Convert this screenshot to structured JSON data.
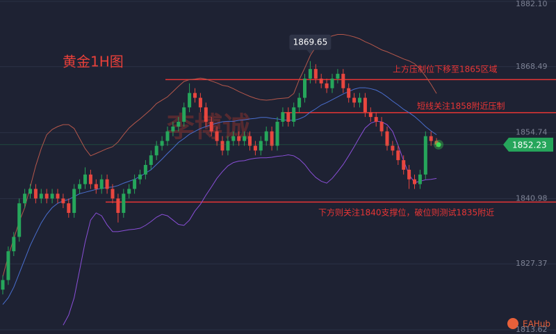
{
  "chart_data": {
    "type": "candlestick",
    "title": "黄金1H图",
    "watermark": "李博诚",
    "brand": "EAHub",
    "ylim": [
      1812.75,
      1882.39
    ],
    "yticks": [
      {
        "value": 1882.1,
        "label": "1882.10"
      },
      1868.49,
      1854.74,
      1840.98,
      1827.37,
      1813.62
    ],
    "grid": true,
    "up_color": "#26a65b",
    "down_color": "#e8463f",
    "open": [
      1822,
      1824,
      1830,
      1833,
      1840,
      1842,
      1843,
      1841,
      1842,
      1841,
      1842,
      1841,
      1840,
      1838,
      1843,
      1844,
      1846,
      1844,
      1843,
      1845,
      1843,
      1841,
      1838,
      1842,
      1843,
      1845,
      1846,
      1848,
      1850,
      1852,
      1853,
      1855,
      1856,
      1857,
      1860,
      1863,
      1862,
      1860,
      1857,
      1855,
      1853,
      1851,
      1853,
      1854,
      1853,
      1854,
      1852,
      1851,
      1853,
      1855,
      1852,
      1857,
      1859,
      1857,
      1860,
      1862,
      1866,
      1868,
      1866,
      1865,
      1864,
      1866,
      1867,
      1864,
      1862,
      1861,
      1862,
      1859,
      1858,
      1857,
      1855,
      1852,
      1851,
      1849,
      1847,
      1845,
      1844,
      1846,
      1854,
      1853
    ],
    "high": [
      1825,
      1831,
      1834,
      1841,
      1843,
      1844,
      1844,
      1843,
      1843,
      1843,
      1843,
      1842,
      1841,
      1844,
      1845,
      1847.5,
      1847,
      1845,
      1846,
      1846,
      1844,
      1842,
      1843,
      1844,
      1846,
      1847,
      1849,
      1851,
      1853,
      1854,
      1856,
      1857,
      1858,
      1861,
      1865,
      1864,
      1863,
      1861,
      1858,
      1856,
      1854,
      1854,
      1855,
      1855,
      1855,
      1855,
      1853,
      1854,
      1856,
      1856,
      1858,
      1860,
      1860,
      1861,
      1863,
      1867,
      1869.65,
      1869,
      1867,
      1866,
      1867,
      1868,
      1868,
      1865,
      1863,
      1863,
      1863,
      1860,
      1859,
      1858,
      1856,
      1853,
      1852,
      1850,
      1848,
      1846,
      1847,
      1855,
      1855,
      1853.6
    ],
    "low": [
      1821,
      1823,
      1829,
      1832,
      1839,
      1841,
      1840,
      1840,
      1840,
      1840,
      1840,
      1839,
      1837,
      1837,
      1842,
      1843,
      1843,
      1842,
      1842,
      1842,
      1840,
      1836,
      1837,
      1841,
      1842,
      1844,
      1845,
      1847,
      1849,
      1851,
      1852,
      1854,
      1855,
      1856,
      1859,
      1861,
      1859,
      1856,
      1854,
      1852,
      1850,
      1850,
      1852,
      1852,
      1852,
      1851,
      1850,
      1850,
      1852,
      1851,
      1851,
      1856,
      1856,
      1856,
      1859,
      1861,
      1865,
      1865,
      1864,
      1863,
      1863,
      1865,
      1863,
      1861,
      1860,
      1860,
      1858,
      1857,
      1856,
      1854,
      1851,
      1850,
      1848,
      1846,
      1843,
      1843,
      1843,
      1845,
      1852,
      1851.8
    ],
    "close": [
      1824,
      1830,
      1833,
      1840,
      1842,
      1843,
      1841,
      1842,
      1841,
      1842,
      1841,
      1840,
      1838,
      1843,
      1844,
      1846,
      1844,
      1843,
      1845,
      1843,
      1841,
      1838,
      1842,
      1843,
      1845,
      1846,
      1848,
      1850,
      1852,
      1853,
      1855,
      1856,
      1857,
      1860,
      1863,
      1862,
      1860,
      1857,
      1855,
      1853,
      1851,
      1853,
      1854,
      1853,
      1854,
      1852,
      1851,
      1853,
      1855,
      1852,
      1857,
      1859,
      1857,
      1860,
      1862,
      1866,
      1868,
      1866,
      1865,
      1864,
      1866,
      1867,
      1864,
      1862,
      1861,
      1862,
      1859,
      1858,
      1857,
      1855,
      1852,
      1851,
      1849,
      1847,
      1845,
      1844,
      1846,
      1854,
      1853,
      1852.23
    ],
    "series": [
      {
        "color": "#b5574b",
        "values": [
          1824.7,
          1829,
          1832.6,
          1836.2,
          1839.1,
          1843.4,
          1847.8,
          1851.4,
          1854.3,
          1855.4,
          1856,
          1856.4,
          1856.4,
          1855.6,
          1853.5,
          1851.4,
          1849.9,
          1850.4,
          1850.9,
          1851.4,
          1851.8,
          1852.8,
          1854.3,
          1855.7,
          1856.7,
          1857.6,
          1858.6,
          1859.6,
          1860.8,
          1861.5,
          1862.2,
          1863.3,
          1864.4,
          1865.4,
          1865.8,
          1865.9,
          1866.1,
          1865.9,
          1865.5,
          1865.1,
          1864.6,
          1864.4,
          1863.9,
          1863.3,
          1862.8,
          1862.3,
          1861.9,
          1861.6,
          1861.5,
          1861.6,
          1861.8,
          1861.9,
          1862,
          1862.9,
          1865.8,
          1868.2,
          1870.8,
          1872.6,
          1873.7,
          1874.5,
          1874.9,
          1875.2,
          1875.2,
          1875,
          1874.7,
          1874.3,
          1873.7,
          1873.2,
          1872.6,
          1872,
          1871.6,
          1871.1,
          1870.6,
          1870.1,
          1869.7,
          1869.1,
          1868,
          1866.5,
          1864.8,
          1862.9
        ]
      },
      {
        "color": "#4a6fd0",
        "values": [
          1818.9,
          1820.3,
          1822.5,
          1825.4,
          1828.3,
          1831.2,
          1833.6,
          1835.9,
          1837.7,
          1839.1,
          1840,
          1840.5,
          1840.8,
          1841.4,
          1842,
          1842.3,
          1842.6,
          1842.9,
          1843.1,
          1843.3,
          1843.4,
          1843.7,
          1844.2,
          1844.6,
          1845,
          1845.6,
          1846.3,
          1847,
          1848.1,
          1849.2,
          1850.4,
          1851.5,
          1852.7,
          1853.5,
          1854.4,
          1855,
          1855.6,
          1856,
          1856.4,
          1856.7,
          1857,
          1857.1,
          1857.1,
          1857.3,
          1857.4,
          1857.6,
          1857.7,
          1857.9,
          1857.9,
          1857.7,
          1857.6,
          1857.4,
          1857.3,
          1857.3,
          1857.6,
          1858.1,
          1859,
          1859.7,
          1860.5,
          1861,
          1861.6,
          1862.2,
          1862.8,
          1863.3,
          1863.8,
          1864.1,
          1864.1,
          1863.9,
          1863.6,
          1863,
          1862.2,
          1861.3,
          1860.5,
          1859.6,
          1858.9,
          1858.1,
          1857.1,
          1856,
          1855.1,
          1854.3
        ]
      },
      {
        "color": "#8a4fd8",
        "values": [
          null,
          null,
          null,
          null,
          null,
          null,
          null,
          null,
          null,
          null,
          null,
          1814.6,
          1816.7,
          1820.3,
          1826.1,
          1831.9,
          1836.5,
          1838,
          1837.4,
          1835.5,
          1834.1,
          1834.1,
          1834.3,
          1834.5,
          1834.6,
          1834.8,
          1835.4,
          1836.2,
          1837.1,
          1837.7,
          1837.4,
          1836.5,
          1835.6,
          1835.4,
          1836.5,
          1838.4,
          1839.8,
          1841.7,
          1843.4,
          1845.2,
          1846.6,
          1847.8,
          1848.5,
          1848.8,
          1848.9,
          1849.2,
          1849.4,
          1849.5,
          1849.5,
          1849.6,
          1849.8,
          1849.9,
          1850.1,
          1849.9,
          1849.2,
          1848.1,
          1846.6,
          1845.4,
          1844.6,
          1844.2,
          1845.2,
          1846.6,
          1848.1,
          1849.9,
          1851.8,
          1853.8,
          1855.7,
          1856.7,
          1857.1,
          1857,
          1856.4,
          1855,
          1852.1,
          1848.9,
          1846,
          1844.3,
          1844.6,
          1844.9,
          1845,
          1845.2
        ]
      }
    ],
    "levels": [
      {
        "value": 1865.8,
        "label": "上方压制位下移至1865区域",
        "color": "#e83535"
      },
      {
        "value": 1858.9,
        "label": "短线关注1858附近压制",
        "color": "#e83535"
      },
      {
        "value": 1840.26,
        "label": "下方则关注1840支撑位，破位则测试1835附近",
        "color": "#e83535"
      }
    ]
  }
}
